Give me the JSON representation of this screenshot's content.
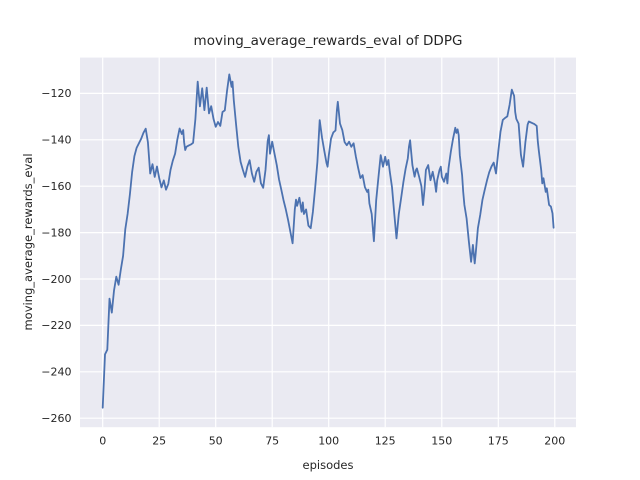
{
  "figure": {
    "kind": "matplotlib-seaborn-line-plot"
  },
  "colors": {
    "line": "#4C72B0",
    "axes_background": "#EAEAF2",
    "grid": "#FFFFFF",
    "text": "#262626",
    "figure_background": "#FFFFFF"
  },
  "chart_data": {
    "type": "line",
    "title": "moving_average_rewards_eval of DDPG",
    "xlabel": "episodes",
    "ylabel": "moving_average_rewards_eval",
    "legend": null,
    "grid": true,
    "xlim": [
      -10.06,
      209.4
    ],
    "ylim": [
      -263.9,
      -104.55
    ],
    "x_ticks": [
      0,
      25,
      50,
      75,
      100,
      125,
      150,
      175,
      200
    ],
    "x_tick_labels": [
      "0",
      "25",
      "50",
      "75",
      "100",
      "125",
      "150",
      "175",
      "200"
    ],
    "y_ticks": [
      -260,
      -240,
      -220,
      -200,
      -180,
      -160,
      -140,
      -120
    ],
    "y_tick_labels": [
      "−260",
      "−240",
      "−220",
      "−200",
      "−180",
      "−160",
      "−140",
      "−120"
    ],
    "series_name": "moving_average_rewards_eval",
    "points": [
      [
        0,
        -255.5
      ],
      [
        1,
        -232.5
      ],
      [
        2,
        -230.5
      ],
      [
        3,
        -208.5
      ],
      [
        4,
        -214.5
      ],
      [
        5,
        -205
      ],
      [
        6,
        -199
      ],
      [
        7,
        -202.5
      ],
      [
        8,
        -196
      ],
      [
        9,
        -190
      ],
      [
        10,
        -178.5
      ],
      [
        11,
        -172
      ],
      [
        12,
        -163.5
      ],
      [
        13,
        -154
      ],
      [
        14,
        -147
      ],
      [
        15,
        -143.5
      ],
      [
        16,
        -141.5
      ],
      [
        17,
        -139.5
      ],
      [
        18,
        -137
      ],
      [
        19,
        -135.2
      ],
      [
        20,
        -141
      ],
      [
        21,
        -154.5
      ],
      [
        22,
        -150.5
      ],
      [
        23,
        -156
      ],
      [
        24,
        -151.5
      ],
      [
        25,
        -156.5
      ],
      [
        26,
        -160.5
      ],
      [
        27,
        -157.5
      ],
      [
        28,
        -161.5
      ],
      [
        29,
        -159
      ],
      [
        30,
        -153
      ],
      [
        31,
        -149
      ],
      [
        32,
        -146
      ],
      [
        33,
        -140
      ],
      [
        34,
        -135.1
      ],
      [
        35,
        -137.5
      ],
      [
        35.6,
        -135.8
      ],
      [
        36,
        -141
      ],
      [
        36.5,
        -144.4
      ],
      [
        37,
        -143
      ],
      [
        38,
        -142.5
      ],
      [
        39,
        -142
      ],
      [
        40,
        -141.3
      ],
      [
        41,
        -131
      ],
      [
        42,
        -114.9
      ],
      [
        43,
        -125.6
      ],
      [
        44,
        -117.8
      ],
      [
        45,
        -127.2
      ],
      [
        46,
        -117.5
      ],
      [
        47,
        -128.6
      ],
      [
        48,
        -125.5
      ],
      [
        49,
        -131
      ],
      [
        50,
        -134.4
      ],
      [
        51,
        -132.3
      ],
      [
        52,
        -134
      ],
      [
        53,
        -128
      ],
      [
        54,
        -127.3
      ],
      [
        55,
        -119
      ],
      [
        56,
        -111.8
      ],
      [
        57,
        -117.2
      ],
      [
        57.4,
        -114.9
      ],
      [
        58,
        -123
      ],
      [
        59,
        -133.5
      ],
      [
        60,
        -143
      ],
      [
        61,
        -149.5
      ],
      [
        62,
        -153
      ],
      [
        63,
        -156
      ],
      [
        64,
        -151.5
      ],
      [
        65,
        -148.8
      ],
      [
        66,
        -154.5
      ],
      [
        67,
        -158.1
      ],
      [
        68,
        -153.8
      ],
      [
        69,
        -152
      ],
      [
        70,
        -158.7
      ],
      [
        71,
        -160.7
      ],
      [
        72,
        -153
      ],
      [
        73,
        -140.5
      ],
      [
        73.5,
        -138
      ],
      [
        74,
        -146
      ],
      [
        75,
        -140.8
      ],
      [
        76,
        -146
      ],
      [
        77,
        -151
      ],
      [
        78,
        -157
      ],
      [
        79,
        -161.5
      ],
      [
        80,
        -166
      ],
      [
        81,
        -170
      ],
      [
        82,
        -174.6
      ],
      [
        83,
        -179.5
      ],
      [
        84,
        -184.6
      ],
      [
        85,
        -170
      ],
      [
        85.5,
        -165.8
      ],
      [
        86,
        -168.5
      ],
      [
        87,
        -165
      ],
      [
        88,
        -171
      ],
      [
        88.5,
        -167
      ],
      [
        89,
        -172
      ],
      [
        90,
        -170
      ],
      [
        91,
        -177
      ],
      [
        92,
        -178.1
      ],
      [
        93,
        -171
      ],
      [
        94,
        -160.5
      ],
      [
        95,
        -149.5
      ],
      [
        96,
        -131.5
      ],
      [
        97,
        -139
      ],
      [
        98,
        -144.5
      ],
      [
        99,
        -150
      ],
      [
        99.5,
        -151.6
      ],
      [
        100,
        -147
      ],
      [
        101,
        -139.5
      ],
      [
        102,
        -136.8
      ],
      [
        103,
        -136
      ],
      [
        103.6,
        -127.2
      ],
      [
        104,
        -123.6
      ],
      [
        105,
        -133
      ],
      [
        106,
        -135.8
      ],
      [
        107,
        -141
      ],
      [
        108,
        -142.3
      ],
      [
        109,
        -140.8
      ],
      [
        110,
        -143
      ],
      [
        111,
        -141.5
      ],
      [
        112,
        -147.3
      ],
      [
        113,
        -152
      ],
      [
        114,
        -156.5
      ],
      [
        115,
        -155.2
      ],
      [
        116,
        -160.4
      ],
      [
        117,
        -162.5
      ],
      [
        117.5,
        -161.5
      ],
      [
        118,
        -167.4
      ],
      [
        119,
        -172
      ],
      [
        120,
        -183.7
      ],
      [
        121,
        -166
      ],
      [
        122,
        -155.9
      ],
      [
        123,
        -146.6
      ],
      [
        124,
        -151.6
      ],
      [
        125,
        -147.3
      ],
      [
        125.7,
        -150.9
      ],
      [
        126.4,
        -148.7
      ],
      [
        127,
        -153.8
      ],
      [
        128,
        -160.4
      ],
      [
        129,
        -172
      ],
      [
        130,
        -182.5
      ],
      [
        131,
        -172
      ],
      [
        132,
        -165.2
      ],
      [
        133,
        -158.5
      ],
      [
        134,
        -152.5
      ],
      [
        135,
        -148
      ],
      [
        135.5,
        -142.9
      ],
      [
        136,
        -140.2
      ],
      [
        137,
        -150.9
      ],
      [
        138,
        -155.9
      ],
      [
        138.6,
        -153
      ],
      [
        139,
        -152.3
      ],
      [
        140,
        -155.9
      ],
      [
        141,
        -160
      ],
      [
        141.7,
        -168.1
      ],
      [
        142.4,
        -160.9
      ],
      [
        143,
        -153
      ],
      [
        144,
        -150.9
      ],
      [
        145,
        -157.4
      ],
      [
        146,
        -153.8
      ],
      [
        147,
        -158.8
      ],
      [
        147.5,
        -162.4
      ],
      [
        148,
        -157.4
      ],
      [
        149,
        -153
      ],
      [
        149.6,
        -151.6
      ],
      [
        150,
        -155.9
      ],
      [
        151,
        -158.1
      ],
      [
        152,
        -154.5
      ],
      [
        152.5,
        -158.8
      ],
      [
        153,
        -152.3
      ],
      [
        154,
        -145.2
      ],
      [
        155,
        -139.4
      ],
      [
        156,
        -134.8
      ],
      [
        156.5,
        -137
      ],
      [
        157,
        -135.5
      ],
      [
        157.5,
        -137.9
      ],
      [
        158,
        -146.6
      ],
      [
        159,
        -155.2
      ],
      [
        159.5,
        -162.4
      ],
      [
        160,
        -168.1
      ],
      [
        161,
        -173.9
      ],
      [
        162,
        -184
      ],
      [
        163,
        -192.6
      ],
      [
        163.8,
        -185.3
      ],
      [
        164.6,
        -193.3
      ],
      [
        165,
        -189
      ],
      [
        166,
        -178.1
      ],
      [
        167,
        -172.4
      ],
      [
        168,
        -166
      ],
      [
        169,
        -161.6
      ],
      [
        170,
        -157.5
      ],
      [
        171,
        -154
      ],
      [
        172,
        -151.5
      ],
      [
        173,
        -149.8
      ],
      [
        174,
        -154.5
      ],
      [
        175,
        -145
      ],
      [
        176,
        -136.5
      ],
      [
        177,
        -131.4
      ],
      [
        178,
        -130.6
      ],
      [
        179,
        -129.9
      ],
      [
        180,
        -124.9
      ],
      [
        181,
        -118.4
      ],
      [
        182,
        -121
      ],
      [
        182.5,
        -128
      ],
      [
        183,
        -131
      ],
      [
        184,
        -133
      ],
      [
        184.5,
        -139.3
      ],
      [
        185,
        -146.4
      ],
      [
        186,
        -151.6
      ],
      [
        187,
        -141
      ],
      [
        188,
        -133.5
      ],
      [
        188.5,
        -132.1
      ],
      [
        189,
        -132.3
      ],
      [
        190,
        -132.8
      ],
      [
        191,
        -133.2
      ],
      [
        192,
        -134
      ],
      [
        192.5,
        -140.7
      ],
      [
        193,
        -145
      ],
      [
        194,
        -153
      ],
      [
        194.5,
        -158.8
      ],
      [
        195,
        -156.6
      ],
      [
        196,
        -162.4
      ],
      [
        196.5,
        -160.9
      ],
      [
        197.5,
        -168.1
      ],
      [
        198.3,
        -168.8
      ],
      [
        199,
        -171.7
      ],
      [
        199.5,
        -177.9
      ]
    ]
  }
}
